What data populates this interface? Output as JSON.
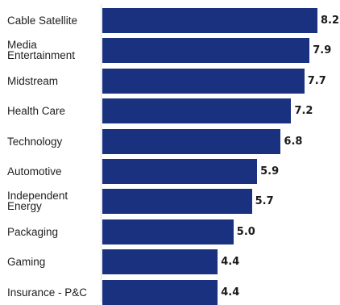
{
  "chart_data": {
    "type": "bar",
    "orientation": "horizontal",
    "categories": [
      "Cable Satellite",
      "Media Entertainment",
      "Midstream",
      "Health Care",
      "Technology",
      "Automotive",
      "Independent Energy",
      "Packaging",
      "Gaming",
      "Insurance - P&C"
    ],
    "values": [
      8.2,
      7.9,
      7.7,
      7.2,
      6.8,
      5.9,
      5.7,
      5.0,
      4.4,
      4.4
    ],
    "value_labels": [
      "8.2",
      "7.9",
      "7.7",
      "7.2",
      "6.8",
      "5.9",
      "5.7",
      "5.0",
      "4.4",
      "4.4"
    ],
    "bar_color": "#19317f",
    "xlim": [
      0,
      8.2
    ],
    "grid": false,
    "legend": "none"
  }
}
